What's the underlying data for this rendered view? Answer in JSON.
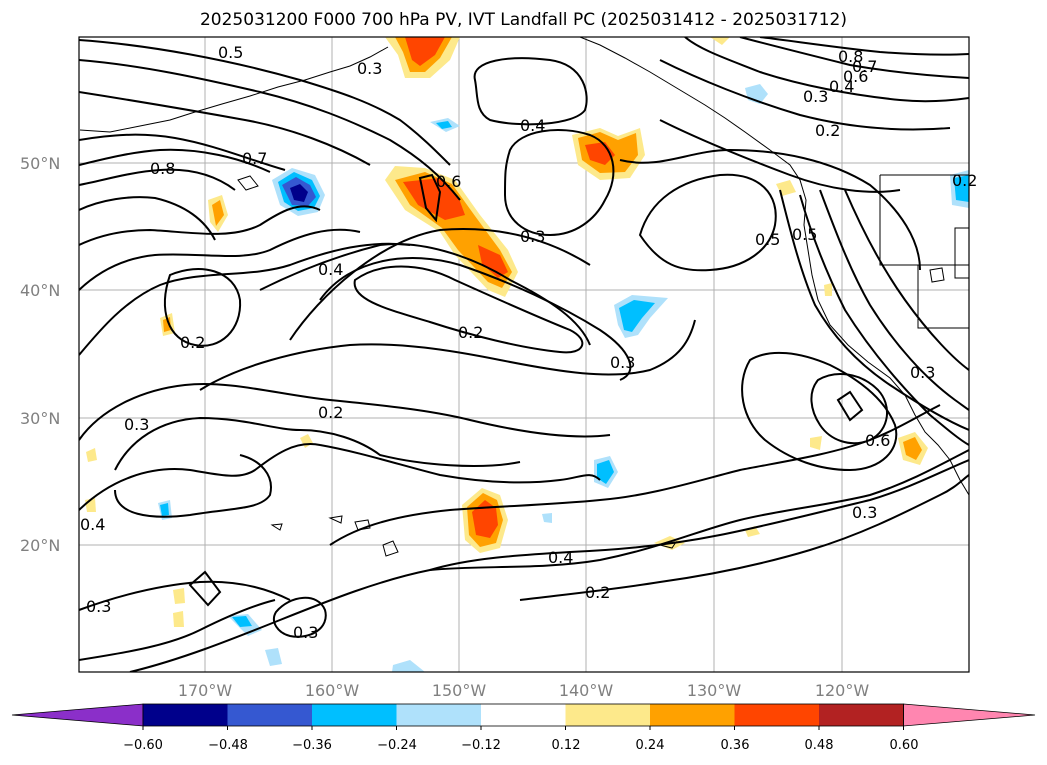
{
  "title": "2025031200 F000 700 hPa PV, IVT Landfall PC (2025031412 - 2025031712)",
  "latitude_ticks": [
    "50°N",
    "40°N",
    "30°N",
    "20°N"
  ],
  "longitude_ticks": [
    "170°W",
    "160°W",
    "150°W",
    "140°W",
    "130°W",
    "120°W"
  ],
  "contour_labels": [
    "0.5",
    "0.3",
    "0.8",
    "0.7",
    "0.6",
    "0.4",
    "0.3",
    "0.2",
    "0.8",
    "0.7",
    "0.4",
    "0.4",
    "0.3",
    "0.6",
    "0.5",
    "0.2",
    "0.2",
    "0.3",
    "0.2",
    "0.3",
    "0.4",
    "0.2",
    "0.3",
    "0.3",
    "0.6",
    "0.3",
    "0.3",
    "0.5",
    "0.4",
    "0.2"
  ],
  "colorbar": {
    "ticks": [
      "−0.60",
      "−0.48",
      "−0.36",
      "−0.24",
      "−0.12",
      "0.12",
      "0.24",
      "0.36",
      "0.48",
      "0.60"
    ],
    "colors": [
      "#8b2fc9",
      "#00008b",
      "#3558d1",
      "#00bfff",
      "#afe1fb",
      "#ffffff",
      "#fde98b",
      "#ffa100",
      "#ff4500",
      "#b22222",
      "#ff86b0"
    ]
  },
  "fill_colors": {
    "blue_light": "#afe1fb",
    "blue": "#00bfff",
    "blue_mid": "#3558d1",
    "blue_dark": "#00008b",
    "yellow": "#fde98b",
    "orange": "#ffa100",
    "red_orange": "#ff4500"
  }
}
